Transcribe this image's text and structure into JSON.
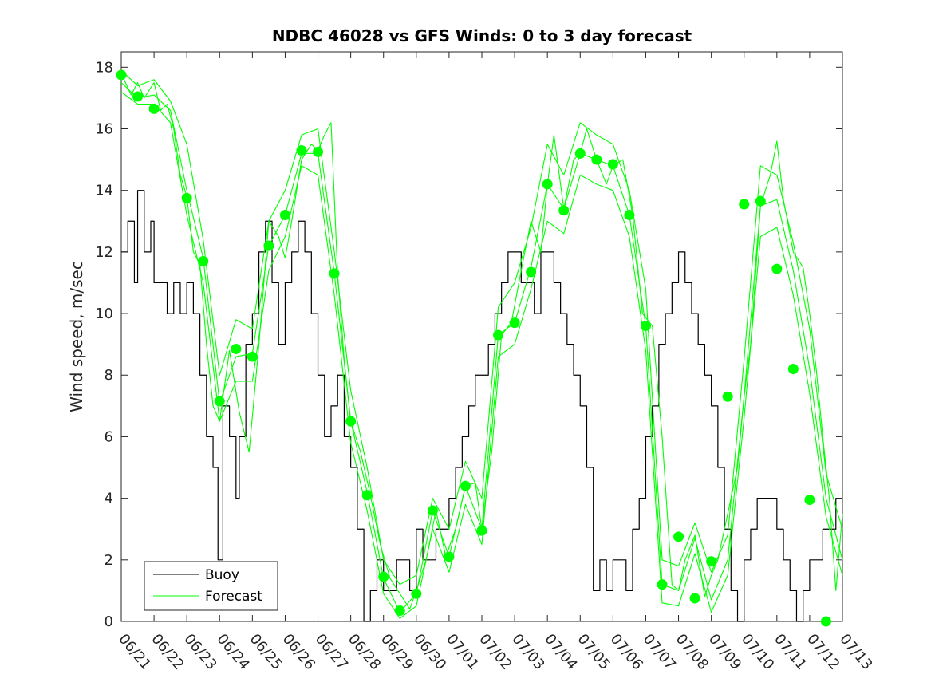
{
  "chart_data": {
    "type": "line",
    "title": "NDBC 46028 vs GFS Winds: 0 to 3 day forecast",
    "xlabel": "",
    "ylabel": "Wind speed, m/sec",
    "xlim": [
      "06/21",
      "07/13"
    ],
    "ylim": [
      0,
      18.5
    ],
    "yticks": [
      0,
      2,
      4,
      6,
      8,
      10,
      12,
      14,
      16,
      18
    ],
    "xticks": [
      "06/21",
      "06/22",
      "06/23",
      "06/24",
      "06/25",
      "06/26",
      "06/27",
      "06/28",
      "06/29",
      "06/30",
      "07/01",
      "07/02",
      "07/03",
      "07/04",
      "07/05",
      "07/06",
      "07/07",
      "07/08",
      "07/09",
      "07/10",
      "07/11",
      "07/12",
      "07/13"
    ],
    "grid": false,
    "legend": {
      "placement": "bottom-left",
      "entries": [
        "Buoy",
        "Forecast"
      ]
    },
    "colors": {
      "buoy": "#000000",
      "forecast": "#00ff00"
    },
    "series": [
      {
        "name": "Buoy",
        "x": [
          0.0,
          0.2,
          0.4,
          0.5,
          0.7,
          0.9,
          1.0,
          1.2,
          1.4,
          1.6,
          1.8,
          2.0,
          2.2,
          2.4,
          2.6,
          2.8,
          2.95,
          3.1,
          3.3,
          3.5,
          3.6,
          3.8,
          4.0,
          4.2,
          4.4,
          4.6,
          4.8,
          5.0,
          5.2,
          5.4,
          5.6,
          5.8,
          6.0,
          6.2,
          6.4,
          6.6,
          6.8,
          7.0,
          7.2,
          7.4,
          7.6,
          7.8,
          8.0,
          8.2,
          8.4,
          8.6,
          8.8,
          9.0,
          9.2,
          9.4,
          9.6,
          9.8,
          10.0,
          10.2,
          10.4,
          10.6,
          10.8,
          11.0,
          11.2,
          11.4,
          11.6,
          11.8,
          12.0,
          12.2,
          12.4,
          12.6,
          12.8,
          13.0,
          13.2,
          13.4,
          13.6,
          13.8,
          14.0,
          14.2,
          14.4,
          14.6,
          14.8,
          15.0,
          15.2,
          15.4,
          15.6,
          15.8,
          16.0,
          16.2,
          16.4,
          16.6,
          16.8,
          17.0,
          17.2,
          17.4,
          17.6,
          17.8,
          18.0,
          18.2,
          18.4,
          18.6,
          18.8,
          19.0,
          19.2,
          19.4,
          19.6,
          19.8,
          20.0,
          20.2,
          20.4,
          20.6,
          20.8,
          21.0,
          21.2,
          21.4,
          21.6,
          21.8,
          22.0
        ],
        "values": [
          12,
          13,
          11,
          14,
          12,
          13,
          11,
          11,
          10,
          11,
          10,
          11,
          10,
          8,
          6,
          5,
          2,
          7,
          6,
          4,
          6,
          9,
          10,
          12,
          13,
          11,
          9,
          11,
          12,
          13,
          12,
          10,
          8,
          6,
          7,
          8,
          6,
          5,
          3,
          0,
          1,
          2,
          1,
          1,
          2,
          2,
          1,
          3,
          2,
          2,
          3,
          3,
          4,
          5,
          6,
          7,
          8,
          8,
          9,
          10,
          11,
          12,
          12,
          11,
          11,
          10,
          12,
          12,
          11,
          10,
          9,
          8,
          7,
          5,
          1,
          2,
          1,
          2,
          2,
          1,
          3,
          4,
          6,
          7,
          9,
          10,
          11,
          12,
          11,
          10,
          9,
          8,
          7,
          5,
          3,
          1,
          0,
          2,
          3,
          4,
          4,
          4,
          3,
          2,
          1,
          0,
          1,
          2,
          2,
          3,
          3,
          4,
          4
        ]
      },
      {
        "name": "Forecast",
        "x": [
          0.0,
          0.3,
          0.5,
          0.7,
          1.0,
          1.2,
          1.4,
          1.6,
          1.8,
          2.0,
          2.2,
          2.4,
          2.6,
          2.8,
          3.0,
          3.3,
          3.6,
          3.9,
          4.2,
          4.5,
          4.8,
          5.0,
          5.2,
          5.5,
          5.8,
          6.0,
          6.2,
          6.4,
          6.6,
          6.8,
          7.0,
          7.3,
          7.6,
          7.9,
          8.2,
          8.5,
          8.8,
          9.0,
          9.3,
          9.6,
          9.9,
          10.2,
          10.5,
          10.8,
          11.0,
          11.3,
          11.6,
          11.9,
          12.2,
          12.5,
          12.8,
          13.0,
          13.2,
          13.5,
          13.8,
          14.0,
          14.2,
          14.5,
          14.8,
          15.0,
          15.3,
          15.6,
          15.9,
          16.2,
          16.5,
          16.8,
          17.0,
          17.2,
          17.5,
          17.8,
          18.0,
          18.2,
          18.5,
          18.8,
          19.0,
          19.2,
          19.5,
          19.8,
          20.0,
          20.2,
          20.5,
          20.8,
          21.0,
          21.2,
          21.4,
          21.6,
          21.8,
          22.0
        ],
        "values": [
          17.8,
          17.1,
          17.5,
          17.0,
          17.5,
          16.6,
          16.8,
          16.0,
          14.5,
          13.8,
          12.0,
          11.6,
          9.0,
          7.0,
          6.5,
          8.8,
          6.8,
          5.5,
          9.0,
          13.0,
          12.5,
          11.8,
          13.0,
          15.0,
          15.5,
          15.3,
          15.8,
          16.2,
          11.3,
          8.5,
          6.5,
          5.5,
          4.1,
          2.5,
          1.4,
          0.9,
          0.4,
          1.0,
          2.0,
          3.6,
          2.1,
          3.0,
          4.4,
          4.5,
          3.0,
          5.5,
          9.3,
          9.7,
          11.4,
          13.0,
          12.0,
          14.2,
          15.8,
          13.4,
          15.0,
          15.2,
          16.0,
          15.0,
          14.2,
          14.8,
          15.0,
          13.2,
          10.0,
          9.6,
          6.0,
          1.2,
          1.0,
          2.0,
          2.8,
          0.8,
          1.5,
          2.0,
          3.5,
          5.0,
          7.3,
          9.0,
          13.5,
          14.5,
          15.6,
          13.7,
          12.0,
          11.5,
          10.0,
          8.2,
          6.0,
          4.0,
          1.0,
          3.5
        ]
      },
      {
        "name": "",
        "x": [
          0.0,
          0.5,
          1.0,
          1.5,
          2.0,
          2.5,
          3.0,
          3.5,
          4.0,
          4.5,
          5.0,
          5.5,
          6.0,
          6.5,
          7.0,
          7.5,
          8.0,
          8.5,
          9.0,
          9.5,
          10.0,
          10.5,
          11.0,
          11.5,
          12.0,
          12.5,
          13.0,
          13.5,
          14.0,
          14.5,
          15.0,
          15.5,
          16.0,
          16.5,
          17.0,
          17.5,
          18.0,
          18.5,
          19.0,
          19.5,
          20.0,
          20.5,
          21.0,
          21.5,
          22.0
        ],
        "values": [
          17.5,
          17.0,
          17.1,
          16.6,
          14.0,
          11.8,
          7.1,
          8.6,
          8.7,
          12.2,
          13.2,
          15.2,
          15.2,
          11.3,
          6.5,
          4.2,
          1.4,
          0.3,
          0.9,
          3.6,
          2.1,
          4.4,
          3.0,
          9.3,
          9.7,
          11.5,
          14.2,
          13.4,
          15.2,
          15.0,
          14.8,
          13.2,
          9.6,
          1.2,
          1.0,
          2.7,
          0.7,
          2.0,
          7.3,
          13.5,
          13.7,
          11.4,
          8.2,
          4.0,
          2.0
        ]
      },
      {
        "name": "",
        "x": [
          0.0,
          0.5,
          1.0,
          1.5,
          2.0,
          2.5,
          3.0,
          3.5,
          4.0,
          4.5,
          5.0,
          5.5,
          6.0,
          6.5,
          7.0,
          7.5,
          8.0,
          8.5,
          9.0,
          9.5,
          10.0,
          10.5,
          11.0,
          11.5,
          12.0,
          12.5,
          13.0,
          13.5,
          14.0,
          14.5,
          15.0,
          15.5,
          16.0,
          16.5,
          17.0,
          17.5,
          18.0,
          18.5,
          19.0,
          19.5,
          20.0,
          20.5,
          21.0,
          21.5,
          22.0
        ],
        "values": [
          17.9,
          17.4,
          17.6,
          16.9,
          15.5,
          12.4,
          8.0,
          9.8,
          9.5,
          13.0,
          14.0,
          15.8,
          16.0,
          12.0,
          7.5,
          5.0,
          2.0,
          1.2,
          1.5,
          4.0,
          3.0,
          5.2,
          4.0,
          10.2,
          11.0,
          12.8,
          15.5,
          14.5,
          16.2,
          15.8,
          15.5,
          14.0,
          10.8,
          2.0,
          1.8,
          3.2,
          1.6,
          2.8,
          8.5,
          14.8,
          14.5,
          12.3,
          9.5,
          4.8,
          3.0
        ]
      },
      {
        "name": "",
        "x": [
          0.0,
          0.5,
          1.0,
          1.5,
          2.0,
          2.5,
          3.0,
          3.5,
          4.0,
          4.5,
          5.0,
          5.5,
          6.0,
          6.5,
          7.0,
          7.5,
          8.0,
          8.5,
          9.0,
          9.5,
          10.0,
          10.5,
          11.0,
          11.5,
          12.0,
          12.5,
          13.0,
          13.5,
          14.0,
          14.5,
          15.0,
          15.5,
          16.0,
          16.5,
          17.0,
          17.5,
          18.0,
          18.5,
          19.0,
          19.5,
          20.0,
          20.5,
          21.0,
          21.5,
          22.0
        ],
        "values": [
          17.2,
          16.8,
          16.8,
          16.2,
          13.2,
          11.0,
          6.5,
          7.8,
          7.8,
          11.4,
          12.5,
          14.8,
          14.5,
          10.6,
          5.8,
          3.6,
          0.9,
          0.1,
          0.5,
          3.0,
          1.6,
          3.8,
          2.5,
          8.6,
          9.0,
          10.8,
          13.0,
          12.6,
          14.5,
          14.2,
          14.0,
          12.5,
          8.8,
          0.6,
          0.5,
          2.2,
          0.3,
          1.5,
          6.6,
          12.5,
          12.8,
          10.6,
          7.4,
          3.4,
          1.5
        ]
      }
    ],
    "markers": {
      "x": [
        0.0,
        0.5,
        1.0,
        2.0,
        2.5,
        3.0,
        3.5,
        4.0,
        4.5,
        5.0,
        5.5,
        6.0,
        6.5,
        7.0,
        7.5,
        8.0,
        8.5,
        9.0,
        9.5,
        10.0,
        10.5,
        11.0,
        11.5,
        12.0,
        12.5,
        13.0,
        13.5,
        14.0,
        14.5,
        15.0,
        15.5,
        16.0,
        16.5,
        17.0,
        17.5,
        18.0,
        18.5,
        19.0,
        19.5,
        20.0,
        20.5,
        21.0,
        21.5
      ],
      "values": [
        17.75,
        17.05,
        16.65,
        13.75,
        11.7,
        7.15,
        8.85,
        8.6,
        12.2,
        13.2,
        15.3,
        15.25,
        11.3,
        6.5,
        4.1,
        1.45,
        0.35,
        0.9,
        3.6,
        2.1,
        4.4,
        2.95,
        9.3,
        9.7,
        11.35,
        14.2,
        13.35,
        15.2,
        15.0,
        14.85,
        13.2,
        9.6,
        1.2,
        2.75,
        0.75,
        1.95,
        7.3,
        13.55,
        13.65,
        11.45,
        8.2,
        3.95,
        0.0
      ]
    }
  }
}
